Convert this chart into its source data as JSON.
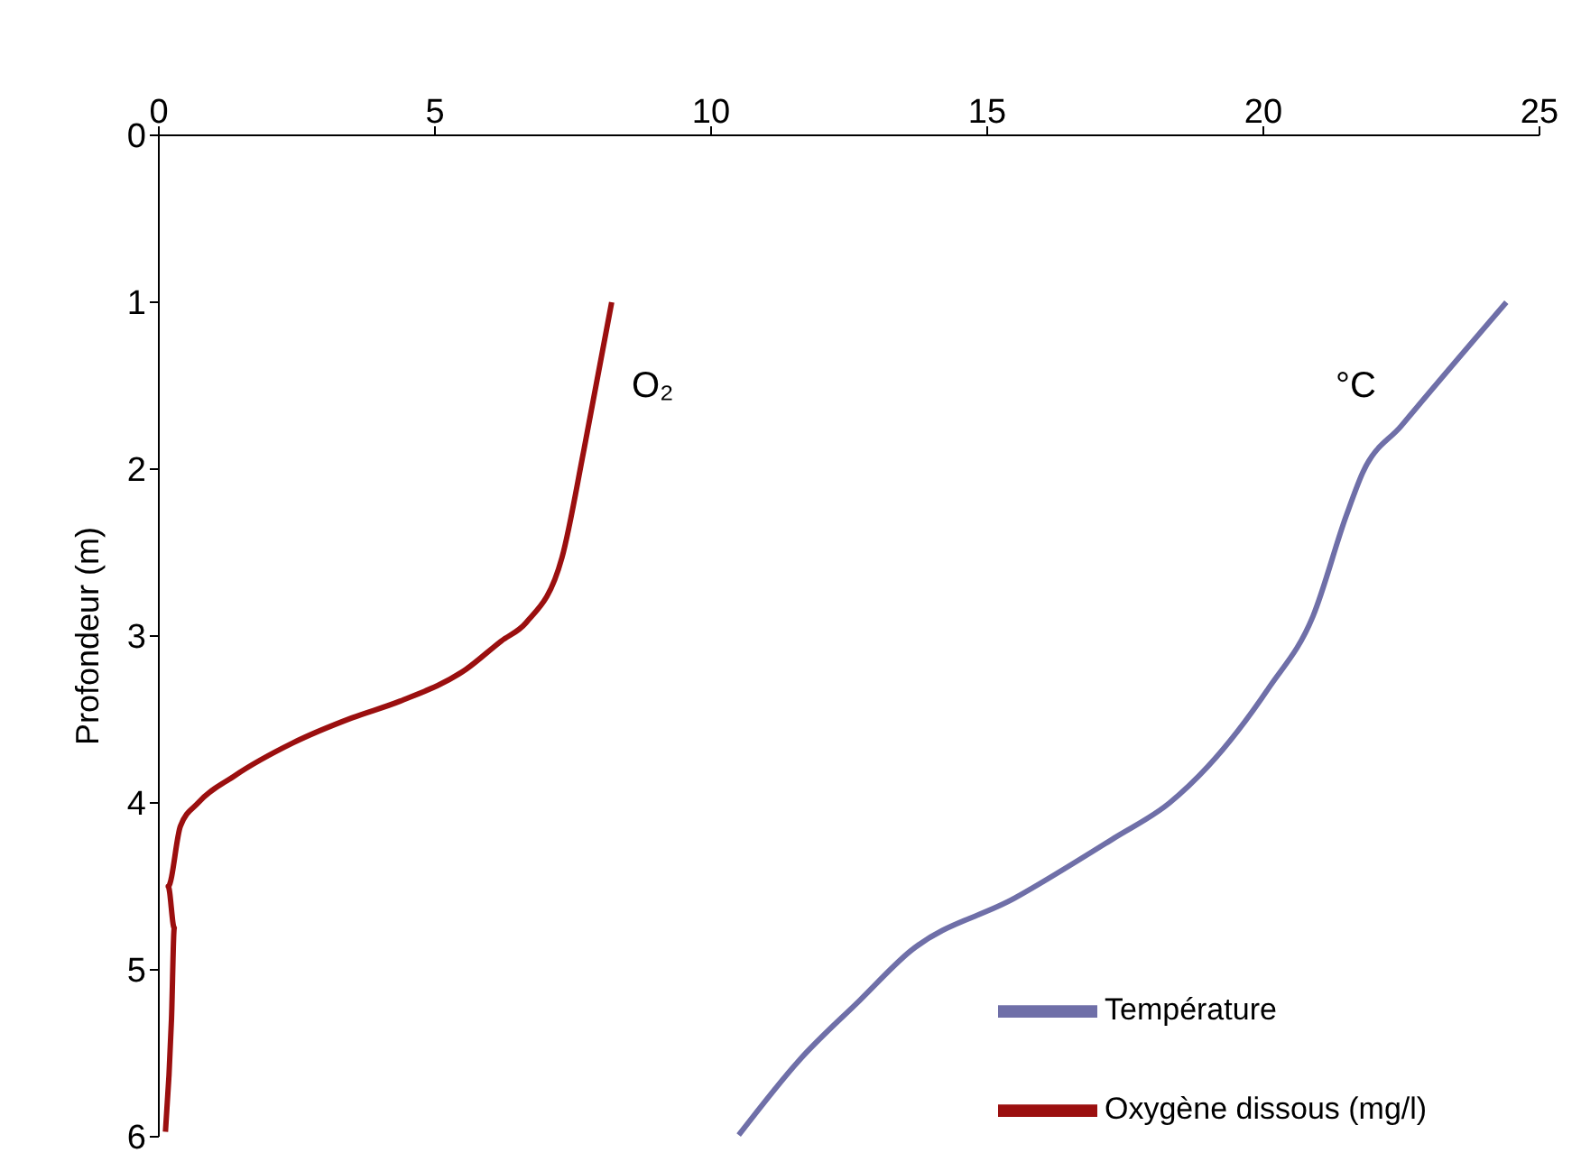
{
  "chart_data": {
    "type": "line",
    "ylabel": "Profondeur (m)",
    "xlim": [
      0,
      25
    ],
    "xticks": [
      0,
      5,
      10,
      15,
      20,
      25
    ],
    "ylim": [
      6,
      0
    ],
    "yticks": [
      0,
      1,
      2,
      3,
      4,
      5,
      6
    ],
    "grid": false,
    "legend": "bottom right",
    "marker": "none",
    "line_style": "solid",
    "annotations": [
      "O₂",
      "°C"
    ],
    "series": [
      {
        "name": "Température",
        "color": "#6f6fa8",
        "x": [
          24.4,
          22.5,
          21.8,
          21.5,
          20.9,
          20.1,
          19.0,
          18.3,
          17.3,
          15.5,
          13.6,
          12.7,
          11.6,
          10.5
        ],
        "values": [
          1.0,
          1.74,
          2.02,
          2.28,
          2.88,
          3.31,
          3.78,
          4.0,
          4.21,
          4.57,
          4.89,
          5.18,
          5.54,
          5.99
        ]
      },
      {
        "name": "Oxygène dissous (mg/l)",
        "color": "#9b0f0f",
        "x": [
          8.2,
          7.7,
          7.3,
          6.65,
          6.2,
          5.56,
          4.37,
          3.5,
          2.43,
          1.36,
          0.71,
          0.39,
          0.17,
          0.28,
          0.23,
          0.12
        ],
        "values": [
          1.0,
          1.88,
          2.53,
          2.92,
          3.03,
          3.2,
          3.39,
          3.49,
          3.64,
          3.84,
          4.0,
          4.14,
          4.5,
          4.75,
          5.29,
          5.97
        ]
      }
    ]
  }
}
